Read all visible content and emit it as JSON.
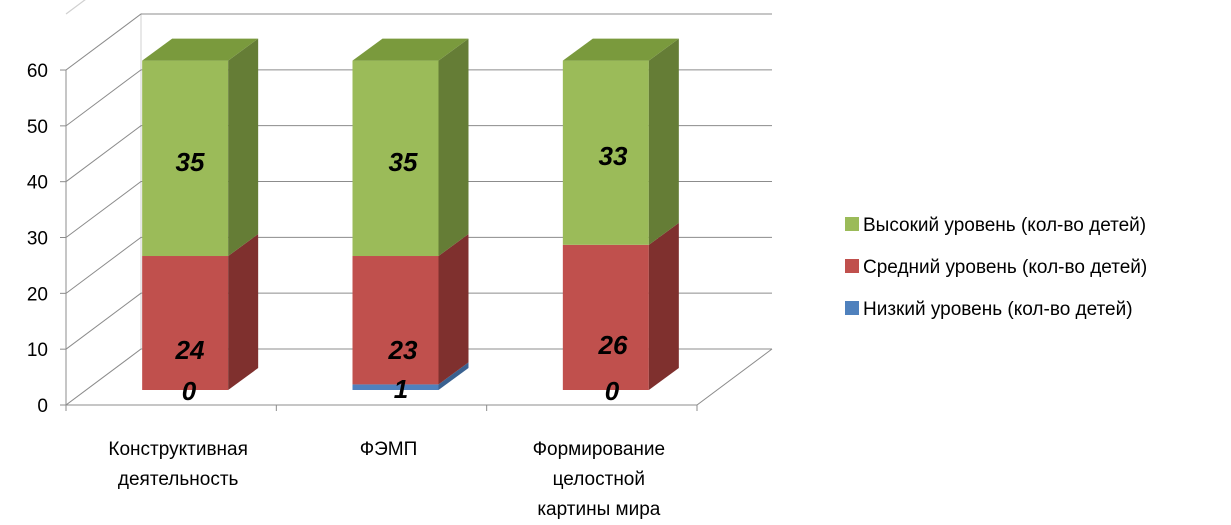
{
  "chart_data": {
    "type": "bar",
    "stacked": true,
    "style": "3d",
    "categories": [
      [
        "Конструктивная",
        "деятельность"
      ],
      [
        "ФЭМП"
      ],
      [
        "Формирование",
        "целостной",
        "картины мира"
      ]
    ],
    "series": [
      {
        "name": "Низкий уровень (кол-во детей)",
        "values": [
          0,
          1,
          0
        ],
        "color": "#4f81bd",
        "side_color": "#3a6190",
        "top_color": "#6a97cf"
      },
      {
        "name": "Средний уровень (кол-во детей)",
        "values": [
          24,
          23,
          26
        ],
        "color": "#c0504d",
        "side_color": "#7f302e",
        "top_color": "#9b3d3a"
      },
      {
        "name": "Высокий уровень (кол-во детей)",
        "values": [
          35,
          35,
          33
        ],
        "color": "#9bbb59",
        "side_color": "#657d36",
        "top_color": "#7a9a3d"
      }
    ],
    "legend_order": [
      2,
      1,
      0
    ],
    "yticks": [
      0,
      10,
      20,
      30,
      40,
      50,
      60
    ],
    "ylim": [
      0,
      60
    ],
    "xlabel": "",
    "ylabel": "",
    "title": "",
    "grid": true,
    "legend": "right"
  }
}
